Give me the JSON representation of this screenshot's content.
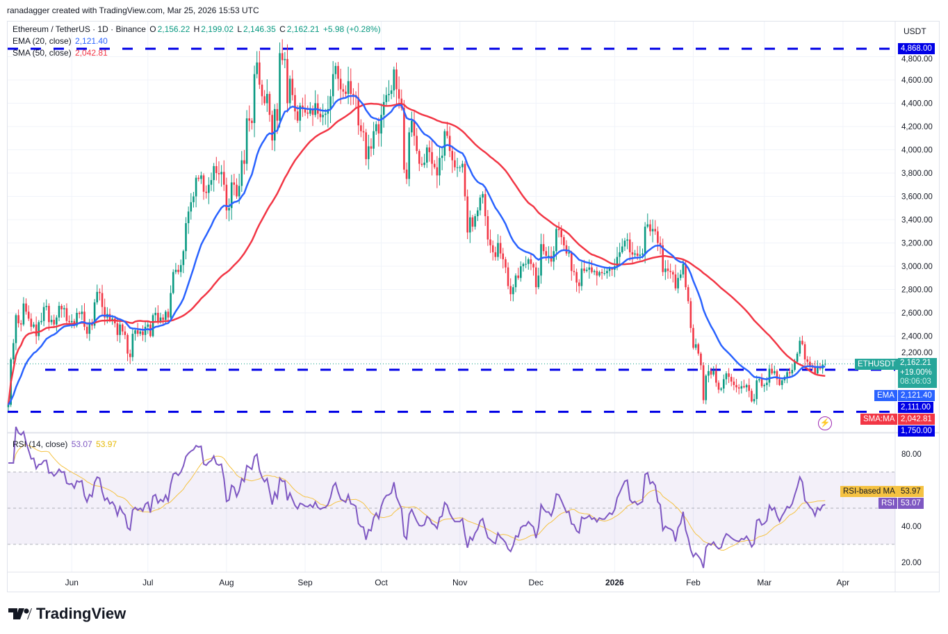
{
  "credit": "ranadagger created with TradingView.com, Mar 25, 2026 15:53 UTC",
  "header": {
    "symbol": "Ethereum / TetherUS · 1D · Binance",
    "open_label": "O",
    "open": "2,156.22",
    "high_label": "H",
    "high": "2,199.02",
    "low_label": "L",
    "low": "2,146.35",
    "close_label": "C",
    "close": "2,162.21",
    "change": "+5.98 (+0.28%)",
    "ema_label": "EMA (20, close)",
    "ema_value": "2,121.40",
    "sma_label": "SMA (50, close)",
    "sma_value": "2,042.81",
    "rsi_label": "RSI (14, close)",
    "rsi_value": "53.07",
    "rsi_ma_value": "53.97"
  },
  "price_axis": {
    "currency": "USDT",
    "badges": {
      "resistance": "4,868.00",
      "ticker": "ETHUSDT",
      "last": "2,162.21",
      "last_change": "+19.00%",
      "countdown": "08:06:03",
      "ema_tag": "EMA",
      "ema": "2,121.40",
      "support1": "2,111.00",
      "sma_tag": "SMA:MA",
      "sma": "2,042.81",
      "support2": "1,750.00"
    },
    "rsi_badges": {
      "ma_tag": "RSI-based MA",
      "ma": "53.97",
      "rsi_tag": "RSI",
      "rsi": "53.07"
    }
  },
  "logo": "TradingView",
  "colors": {
    "up": "#089981",
    "down": "#f23645",
    "ema": "#2962ff",
    "sma": "#f23645",
    "levels": "#0000e6",
    "rsi": "#7e57c2",
    "rsi_ma": "#f5c242",
    "band": "#7e57c2"
  },
  "chart_data": {
    "type": "candlestick",
    "symbol": "ETHUSDT",
    "interval": "1D",
    "start_date": "2025-05-07",
    "end_date": "2026-03-25",
    "ylim": [
      1700,
      4960
    ],
    "y_ticks": [
      2200,
      2400,
      2600,
      2800,
      3000,
      3200,
      3400,
      3600,
      3800,
      4000,
      4200,
      4400,
      4600,
      4800
    ],
    "x_ticks": [
      {
        "label": "Jun",
        "date": "2025-06-01"
      },
      {
        "label": "Jul",
        "date": "2025-07-01"
      },
      {
        "label": "Aug",
        "date": "2025-08-01"
      },
      {
        "label": "Sep",
        "date": "2025-09-01"
      },
      {
        "label": "Oct",
        "date": "2025-10-01"
      },
      {
        "label": "Nov",
        "date": "2025-11-01"
      },
      {
        "label": "Dec",
        "date": "2025-12-01"
      },
      {
        "label": "2026",
        "date": "2026-01-01"
      },
      {
        "label": "Feb",
        "date": "2026-02-01"
      },
      {
        "label": "Mar",
        "date": "2026-03-01"
      },
      {
        "label": "Apr",
        "date": "2026-04-01"
      }
    ],
    "horizontal_levels": [
      4868,
      2111,
      1750
    ],
    "last_candle": {
      "open": 2156.22,
      "high": 2199.02,
      "low": 2146.35,
      "close": 2162.21
    },
    "closes": [
      1810,
      2200,
      2340,
      2580,
      2510,
      2500,
      2680,
      2610,
      2550,
      2480,
      2500,
      2400,
      2520,
      2530,
      2650,
      2660,
      2520,
      2540,
      2500,
      2560,
      2660,
      2630,
      2640,
      2530,
      2520,
      2530,
      2490,
      2600,
      2590,
      2610,
      2480,
      2420,
      2510,
      2490,
      2690,
      2780,
      2770,
      2650,
      2560,
      2590,
      2530,
      2550,
      2510,
      2410,
      2500,
      2440,
      2410,
      2250,
      2220,
      2420,
      2450,
      2420,
      2440,
      2410,
      2480,
      2500,
      2400,
      2580,
      2600,
      2520,
      2560,
      2540,
      2610,
      2560,
      2770,
      2950,
      2970,
      2950,
      3010,
      3130,
      3370,
      3470,
      3550,
      3600,
      3760,
      3750,
      3780,
      3640,
      3630,
      3700,
      3740,
      3860,
      3800,
      3790,
      3810,
      3700,
      3480,
      3500,
      3720,
      3700,
      3600,
      3690,
      3910,
      3880,
      4270,
      4250,
      4230,
      4650,
      4750,
      4560,
      4460,
      4400,
      4480,
      4300,
      4080,
      4350,
      4250,
      4830,
      4770,
      4780,
      4400,
      4610,
      4470,
      4330,
      4250,
      4380,
      4360,
      4320,
      4310,
      4350,
      4300,
      4400,
      4310,
      4280,
      4300,
      4310,
      4350,
      4460,
      4650,
      4720,
      4610,
      4520,
      4500,
      4480,
      4590,
      4480,
      4470,
      4450,
      4210,
      4160,
      4150,
      3920,
      4030,
      4010,
      4160,
      4220,
      4140,
      4300,
      4410,
      4470,
      4480,
      4510,
      4690,
      4520,
      4440,
      4360,
      3830,
      3750,
      4150,
      4250,
      4120,
      3990,
      3880,
      3870,
      3890,
      4020,
      3980,
      3880,
      3850,
      3780,
      3930,
      3950,
      4160,
      4120,
      3990,
      3910,
      3850,
      3850,
      3850,
      3880,
      3600,
      3290,
      3420,
      3340,
      3430,
      3480,
      3590,
      3620,
      3430,
      3230,
      3180,
      3120,
      3080,
      3200,
      3110,
      3060,
      2990,
      2830,
      2760,
      2820,
      2920,
      2900,
      3000,
      3020,
      3020,
      3060,
      3020,
      2990,
      2820,
      2920,
      3190,
      3130,
      3090,
      3090,
      3040,
      3130,
      3320,
      3310,
      3250,
      3180,
      3110,
      3120,
      2960,
      2950,
      2860,
      2830,
      2980,
      2960,
      2970,
      2990,
      2950,
      2960,
      2920,
      2950,
      2940,
      2940,
      2960,
      2980,
      2970,
      3000,
      3080,
      3120,
      3170,
      3220,
      3230,
      3120,
      3100,
      3110,
      3090,
      3100,
      3110,
      3340,
      3360,
      3300,
      3320,
      3300,
      3200,
      3180,
      2950,
      2980,
      2960,
      2950,
      2930,
      2810,
      2900,
      2930,
      3020,
      2820,
      2700,
      2470,
      2300,
      2330,
      2250,
      2150,
      1850,
      2060,
      2100,
      2070,
      2100,
      2000,
      1940,
      1950,
      2030,
      2080,
      2050,
      2010,
      1980,
      1960,
      1950,
      1970,
      1960,
      1980,
      1930,
      1840,
      1860,
      2020,
      2030,
      1970,
      1980,
      2000,
      2120,
      2080,
      2100,
      2030,
      1980,
      2020,
      2050,
      2090,
      2080,
      2110,
      2180,
      2250,
      2360,
      2330,
      2200,
      2180,
      2150,
      2130,
      2080,
      2140,
      2120,
      2156.22,
      2162.21
    ],
    "indicators": {
      "ema": {
        "period": 20,
        "source": "close",
        "last": 2121.4
      },
      "sma": {
        "period": 50,
        "source": "close",
        "last": 2042.81
      },
      "rsi": {
        "period": 14,
        "source": "close",
        "last": 53.07,
        "ma_last": 53.97,
        "ylim": [
          10,
          95
        ],
        "y_ticks": [
          20,
          40,
          80
        ],
        "bands": [
          70,
          50,
          30
        ]
      }
    }
  }
}
